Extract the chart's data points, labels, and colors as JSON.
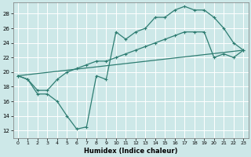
{
  "xlabel": "Humidex (Indice chaleur)",
  "bg_color": "#cde8e8",
  "line_color": "#2e7d72",
  "grid_color": "#ffffff",
  "xlim": [
    -0.5,
    23.5
  ],
  "ylim": [
    11,
    29.5
  ],
  "xticks": [
    0,
    1,
    2,
    3,
    4,
    5,
    6,
    7,
    8,
    9,
    10,
    11,
    12,
    13,
    14,
    15,
    16,
    17,
    18,
    19,
    20,
    21,
    22,
    23
  ],
  "yticks": [
    12,
    14,
    16,
    18,
    20,
    22,
    24,
    26,
    28
  ],
  "line1_x": [
    0,
    1,
    2,
    3,
    4,
    5,
    6,
    7,
    8,
    9,
    10,
    11,
    12,
    13,
    14,
    15,
    16,
    17,
    18,
    19,
    20,
    21,
    22,
    23
  ],
  "line1_y": [
    19.5,
    19.0,
    17.0,
    17.0,
    16.0,
    14.0,
    12.2,
    12.5,
    19.5,
    19.0,
    25.5,
    24.5,
    25.5,
    26.0,
    27.5,
    27.5,
    28.5,
    29.0,
    28.5,
    28.5,
    27.5,
    26.0,
    24.0,
    23.0
  ],
  "line2_x": [
    0,
    1,
    2,
    3,
    4,
    5,
    6,
    7,
    8,
    9,
    10,
    11,
    12,
    13,
    14,
    15,
    16,
    17,
    18,
    19,
    20,
    21,
    22,
    23
  ],
  "line2_y": [
    19.5,
    19.0,
    17.5,
    17.5,
    19.0,
    20.0,
    20.5,
    21.0,
    21.5,
    21.5,
    22.0,
    22.5,
    23.0,
    23.5,
    24.0,
    24.5,
    25.0,
    25.5,
    25.5,
    25.5,
    22.0,
    22.5,
    22.0,
    23.0
  ],
  "line3_x": [
    0,
    23
  ],
  "line3_y": [
    19.5,
    23.0
  ]
}
